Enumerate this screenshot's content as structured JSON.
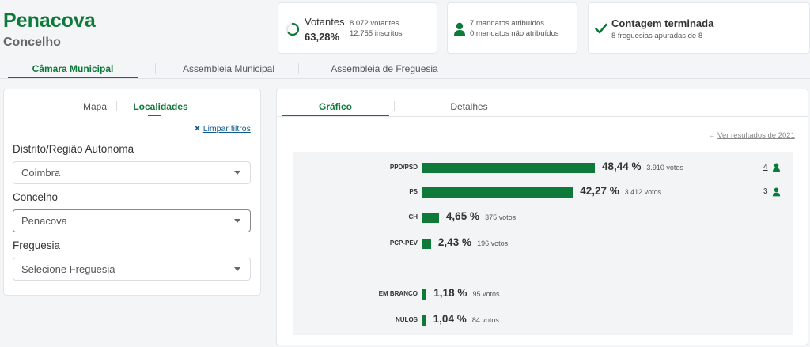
{
  "header": {
    "title": "Penacova",
    "subtitle": "Concelho"
  },
  "stats": {
    "votantes": {
      "label": "Votantes",
      "percent": "63,28%",
      "voters": "8.072 votantes",
      "registered": "12.755 inscritos",
      "fraction": 0.6328
    },
    "mandates": {
      "assigned": "7 mandatos atribuídos",
      "unassigned": "0 mandatos não atribuídos"
    },
    "count": {
      "title": "Contagem terminada",
      "detail": "8 freguesias apuradas de 8"
    }
  },
  "main_tabs": [
    "Câmara Municipal",
    "Assembleia Municipal",
    "Assembleia de Freguesia"
  ],
  "filter_panel": {
    "tabs": [
      "Mapa",
      "Localidades"
    ],
    "clear_label": "Limpar filtros",
    "fields": [
      {
        "label": "Distrito/Região Autónoma",
        "value": "Coimbra"
      },
      {
        "label": "Concelho",
        "value": "Penacova"
      },
      {
        "label": "Freguesia",
        "value": "Selecione Freguesia"
      }
    ]
  },
  "results_panel": {
    "tabs": [
      "Gráfico",
      "Detalhes"
    ],
    "previous_link": "Ver resultados de 2021"
  },
  "chart_data": {
    "type": "bar",
    "orientation": "horizontal",
    "categories": [
      "PPD/PSD",
      "PS",
      "CH",
      "PCP-PEV",
      "EM BRANCO",
      "NULOS"
    ],
    "values": [
      48.44,
      42.27,
      4.65,
      2.43,
      1.18,
      1.04
    ],
    "percent_labels": [
      "48,44 %",
      "42,27 %",
      "4,65 %",
      "2,43 %",
      "1,18 %",
      "1,04 %"
    ],
    "vote_labels": [
      "3.910 votos",
      "3.412 votos",
      "375 votos",
      "196 votos",
      "95 votos",
      "84 votos"
    ],
    "seats": [
      "4",
      "3",
      "",
      "",
      "",
      ""
    ]
  }
}
